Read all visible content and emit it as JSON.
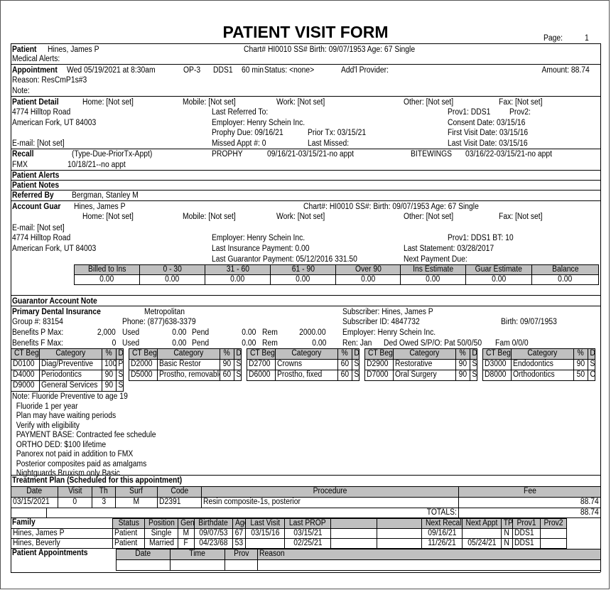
{
  "title": "PATIENT VISIT FORM",
  "page_label": "Page:",
  "page_number": "1",
  "patient": {
    "label": "Patient",
    "name": "Hines, James P",
    "info": "Chart# HI0010  SS#  Birth: 09/07/1953  Age: 67 Single",
    "medical_alerts": "Medical Alerts:"
  },
  "appointment": {
    "label": "Appointment",
    "datetime": "Wed 05/19/2021 at  8:30am",
    "op": "OP-3",
    "provider": "DDS1",
    "length": "60 min",
    "status": "Status: <none>",
    "addl_provider": "Add'l Provider:",
    "amount": "Amount: 88.74",
    "reason": "Reason: ResCmP1s#3",
    "note": "Note:"
  },
  "patient_detail": {
    "label": "Patient Detail",
    "home": "Home: [Not set]",
    "mobile": "Mobile: [Not set]",
    "work": "Work: [Not set]",
    "other": "Other: [Not set]",
    "fax": "Fax: [Not set]",
    "address1": "4774 Hilltop Road",
    "address2": "American Fork, UT 84003",
    "email": "E-mail: [Not set]",
    "last_referred": "Last Referred To:",
    "employer": "Employer: Henry Schein Inc.",
    "prophy_due": "Prophy Due: 09/16/21",
    "prior_tx": "Prior Tx: 03/15/21",
    "missed_appt": "Missed Appt #: 0",
    "last_missed": "Last Missed:",
    "prov1": "Prov1: DDS1",
    "prov2": "Prov2:",
    "consent": "Consent Date:  03/15/16",
    "first_visit": "First Visit Date:  03/15/16",
    "last_visit": "Last Visit Date:  03/15/16"
  },
  "recall": {
    "label": "Recall",
    "header": "(Type-Due-PriorTx-Appt)",
    "prophy_label": "PROPHY",
    "prophy_value": "09/16/21-03/15/21-no appt",
    "bitewings_label": "BITEWINGS",
    "bitewings_value": "03/16/22-03/15/21-no appt",
    "fmx_label": "FMX",
    "fmx_value": "10/18/21--no appt"
  },
  "patient_alerts": "Patient Alerts",
  "patient_notes": "Patient Notes",
  "referred_by": {
    "label": "Referred By",
    "value": "Bergman, Stanley M"
  },
  "account_guar": {
    "label": "Account Guar",
    "name": "Hines, James P",
    "info": "Chart#: HI0010  SS#:  Birth: 09/07/1953  Age: 67  Single",
    "home": "Home: [Not set]",
    "mobile": "Mobile: [Not set]",
    "work": "Work: [Not set]",
    "other": "Other: [Not set]",
    "fax": "Fax: [Not set]",
    "email": "E-mail: [Not set]",
    "address1": "4774 Hilltop Road",
    "address2": "American Fork, UT 84003",
    "employer": "Employer: Henry Schein Inc.",
    "last_ins_payment": "Last Insurance Payment:  0.00",
    "last_guar_payment": "Last Guarantor Payment: 05/12/2016  331.50",
    "prov_bt": "Prov1: DDS1   BT: 10",
    "last_statement": "Last Statement: 03/28/2017",
    "next_payment": "Next Payment Due:"
  },
  "aging": {
    "headers": [
      "Billed to Ins",
      "0 - 30",
      "31 - 60",
      "61 - 90",
      "Over 90",
      "Ins Estimate",
      "Guar Estimate",
      "Balance"
    ],
    "values": [
      "0.00",
      "0.00",
      "0.00",
      "0.00",
      "0.00",
      "0.00",
      "0.00",
      "0.00"
    ]
  },
  "guarantor_note": "Guarantor Account Note",
  "insurance": {
    "label": "Primary Dental Insurance",
    "carrier": "Metropolitan",
    "group": "Group #: 83154",
    "phone": "Phone: (877)638-3379",
    "subscriber": "Subscriber:  Hines, James P",
    "subscriber_id": "Subscriber ID: 4847732",
    "birth": "Birth: 09/07/1953",
    "employer": "Employer: Henry Schein Inc.",
    "p_label": "Benefits P Max:",
    "p_max": "2,000",
    "f_label": "Benefits F Max:",
    "f_max": "0",
    "used_label": "Used",
    "pend_label": "Pend",
    "rem_label": "Rem",
    "p_used": "0.00",
    "p_pend": "0.00",
    "p_rem": "2000.00",
    "f_used": "0.00",
    "f_pend": "0.00",
    "f_rem": "0.00",
    "ren": "Ren: Jan",
    "ded_owed": "Ded Owed S/P/O: Pat 50/0/50",
    "fam": "Fam 0/0/0"
  },
  "coverage": {
    "headers": [
      "CT Beg",
      "Category",
      "%",
      "D"
    ],
    "rows": [
      [
        [
          "D0100",
          "Diag/Preventive",
          "100",
          "P"
        ],
        [
          "D2000",
          "Basic Restor",
          "90",
          "S"
        ],
        [
          "D2700",
          "Crowns",
          "60",
          "S"
        ],
        [
          "D2900",
          "Restorative",
          "90",
          "S"
        ],
        [
          "D3000",
          "Endodontics",
          "90",
          "S"
        ]
      ],
      [
        [
          "D4000",
          "Periodontics",
          "90",
          "S"
        ],
        [
          "D5000",
          "Prostho, removable",
          "60",
          "S"
        ],
        [
          "D6000",
          "Prostho, fixed",
          "60",
          "S"
        ],
        [
          "D7000",
          "Oral Surgery",
          "90",
          "S"
        ],
        [
          "D8000",
          "Orthodontics",
          "50",
          "O"
        ]
      ],
      [
        [
          "D9000",
          "General Services",
          "90",
          "S"
        ]
      ]
    ]
  },
  "insurance_notes": [
    "Note: Fluoride Preventive to age 19",
    "  Fluoride 1 per year",
    "  Plan may have waiting periods",
    "  Verify with eligibility",
    "  PAYMENT BASE: Contracted fee schedule",
    "  ORTHO DED: $100 lifetime",
    "  Panorex not paid in addition to FMX",
    "  Posterior composites paid as amalgams",
    "  Nightguards Bruxism only Basic"
  ],
  "treatment_plan": {
    "title": "Treatment Plan (Scheduled for this appointment)",
    "headers": [
      "Date",
      "Visit",
      "Th",
      "Surf",
      "Code",
      "Procedure",
      "Fee"
    ],
    "rows": [
      [
        "03/15/2021",
        "0",
        "3",
        "M",
        "D2391",
        "Resin composite-1s, posterior",
        "88.74"
      ]
    ],
    "totals_label": "TOTALS:",
    "total": "88.74"
  },
  "family": {
    "headers": [
      "Family",
      "Status",
      "Position",
      "Gen",
      "Birthdate",
      "Age",
      "Last Visit",
      "Last PROP",
      "",
      "",
      "Next Recall",
      "Next Appt",
      "TP",
      "Prov1",
      "Prov2"
    ],
    "rows": [
      [
        "Hines, James P",
        "Patient",
        "Single",
        "M",
        "09/07/53",
        "67",
        "03/15/16",
        "03/15/21",
        "",
        "",
        "09/16/21",
        "",
        "N",
        "DDS1",
        ""
      ],
      [
        "Hines, Beverly",
        "Patient",
        "Married",
        "F",
        "04/23/68",
        "53",
        "",
        "02/25/21",
        "",
        "",
        "11/26/21",
        "05/24/21",
        "N",
        "DDS1",
        ""
      ]
    ]
  },
  "appointments": {
    "label": "Patient Appointments",
    "headers": [
      "Date",
      "Time",
      "Prov",
      "Reason"
    ]
  }
}
